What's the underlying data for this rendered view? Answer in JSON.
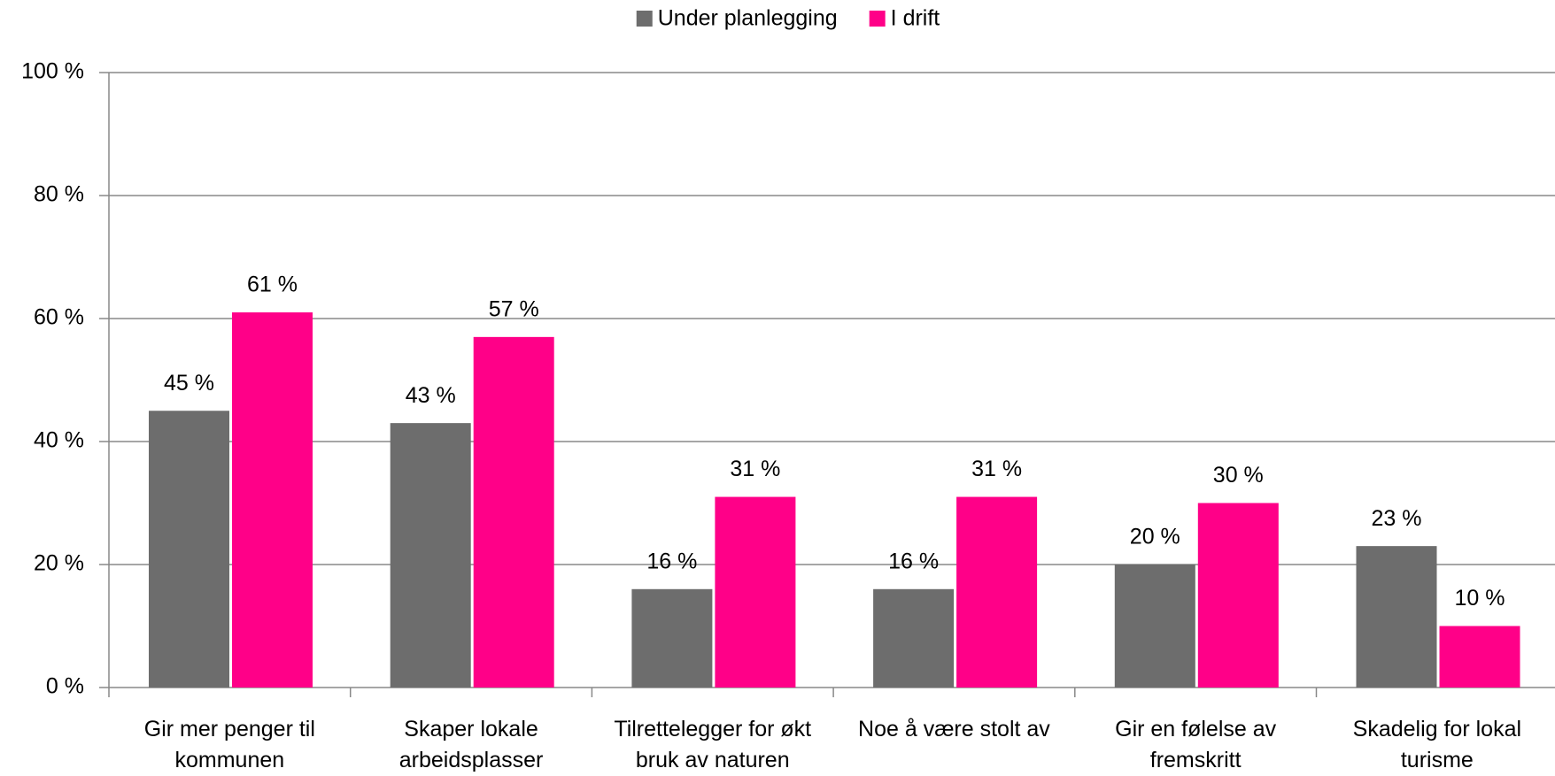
{
  "chart_data": {
    "type": "bar",
    "categories": [
      "Gir mer penger til kommunen",
      "Skaper lokale arbeidsplasser",
      "Tilrettelegger for økt bruk av naturen",
      "Noe å være stolt av",
      "Gir en følelse av fremskritt",
      "Skadelig for lokal turisme"
    ],
    "series": [
      {
        "name": "Under planlegging",
        "color": "#6d6d6d",
        "values": [
          45,
          43,
          16,
          16,
          20,
          23
        ],
        "value_labels": [
          "45 %",
          "43 %",
          "16 %",
          "16 %",
          "20 %",
          "23 %"
        ]
      },
      {
        "name": "I drift",
        "color": "#ff0088",
        "values": [
          61,
          57,
          31,
          31,
          30,
          10
        ],
        "value_labels": [
          "61 %",
          "57 %",
          "31 %",
          "31 %",
          "30 %",
          "10 %"
        ]
      }
    ],
    "ylim": [
      0,
      100
    ],
    "yticks": [
      {
        "value": 0,
        "label": "0 %"
      },
      {
        "value": 20,
        "label": "20 %"
      },
      {
        "value": 40,
        "label": "40 %"
      },
      {
        "value": 60,
        "label": "60 %"
      },
      {
        "value": 80,
        "label": "80 %"
      },
      {
        "value": 100,
        "label": "100 %"
      }
    ],
    "grid": true,
    "legend": "top"
  }
}
